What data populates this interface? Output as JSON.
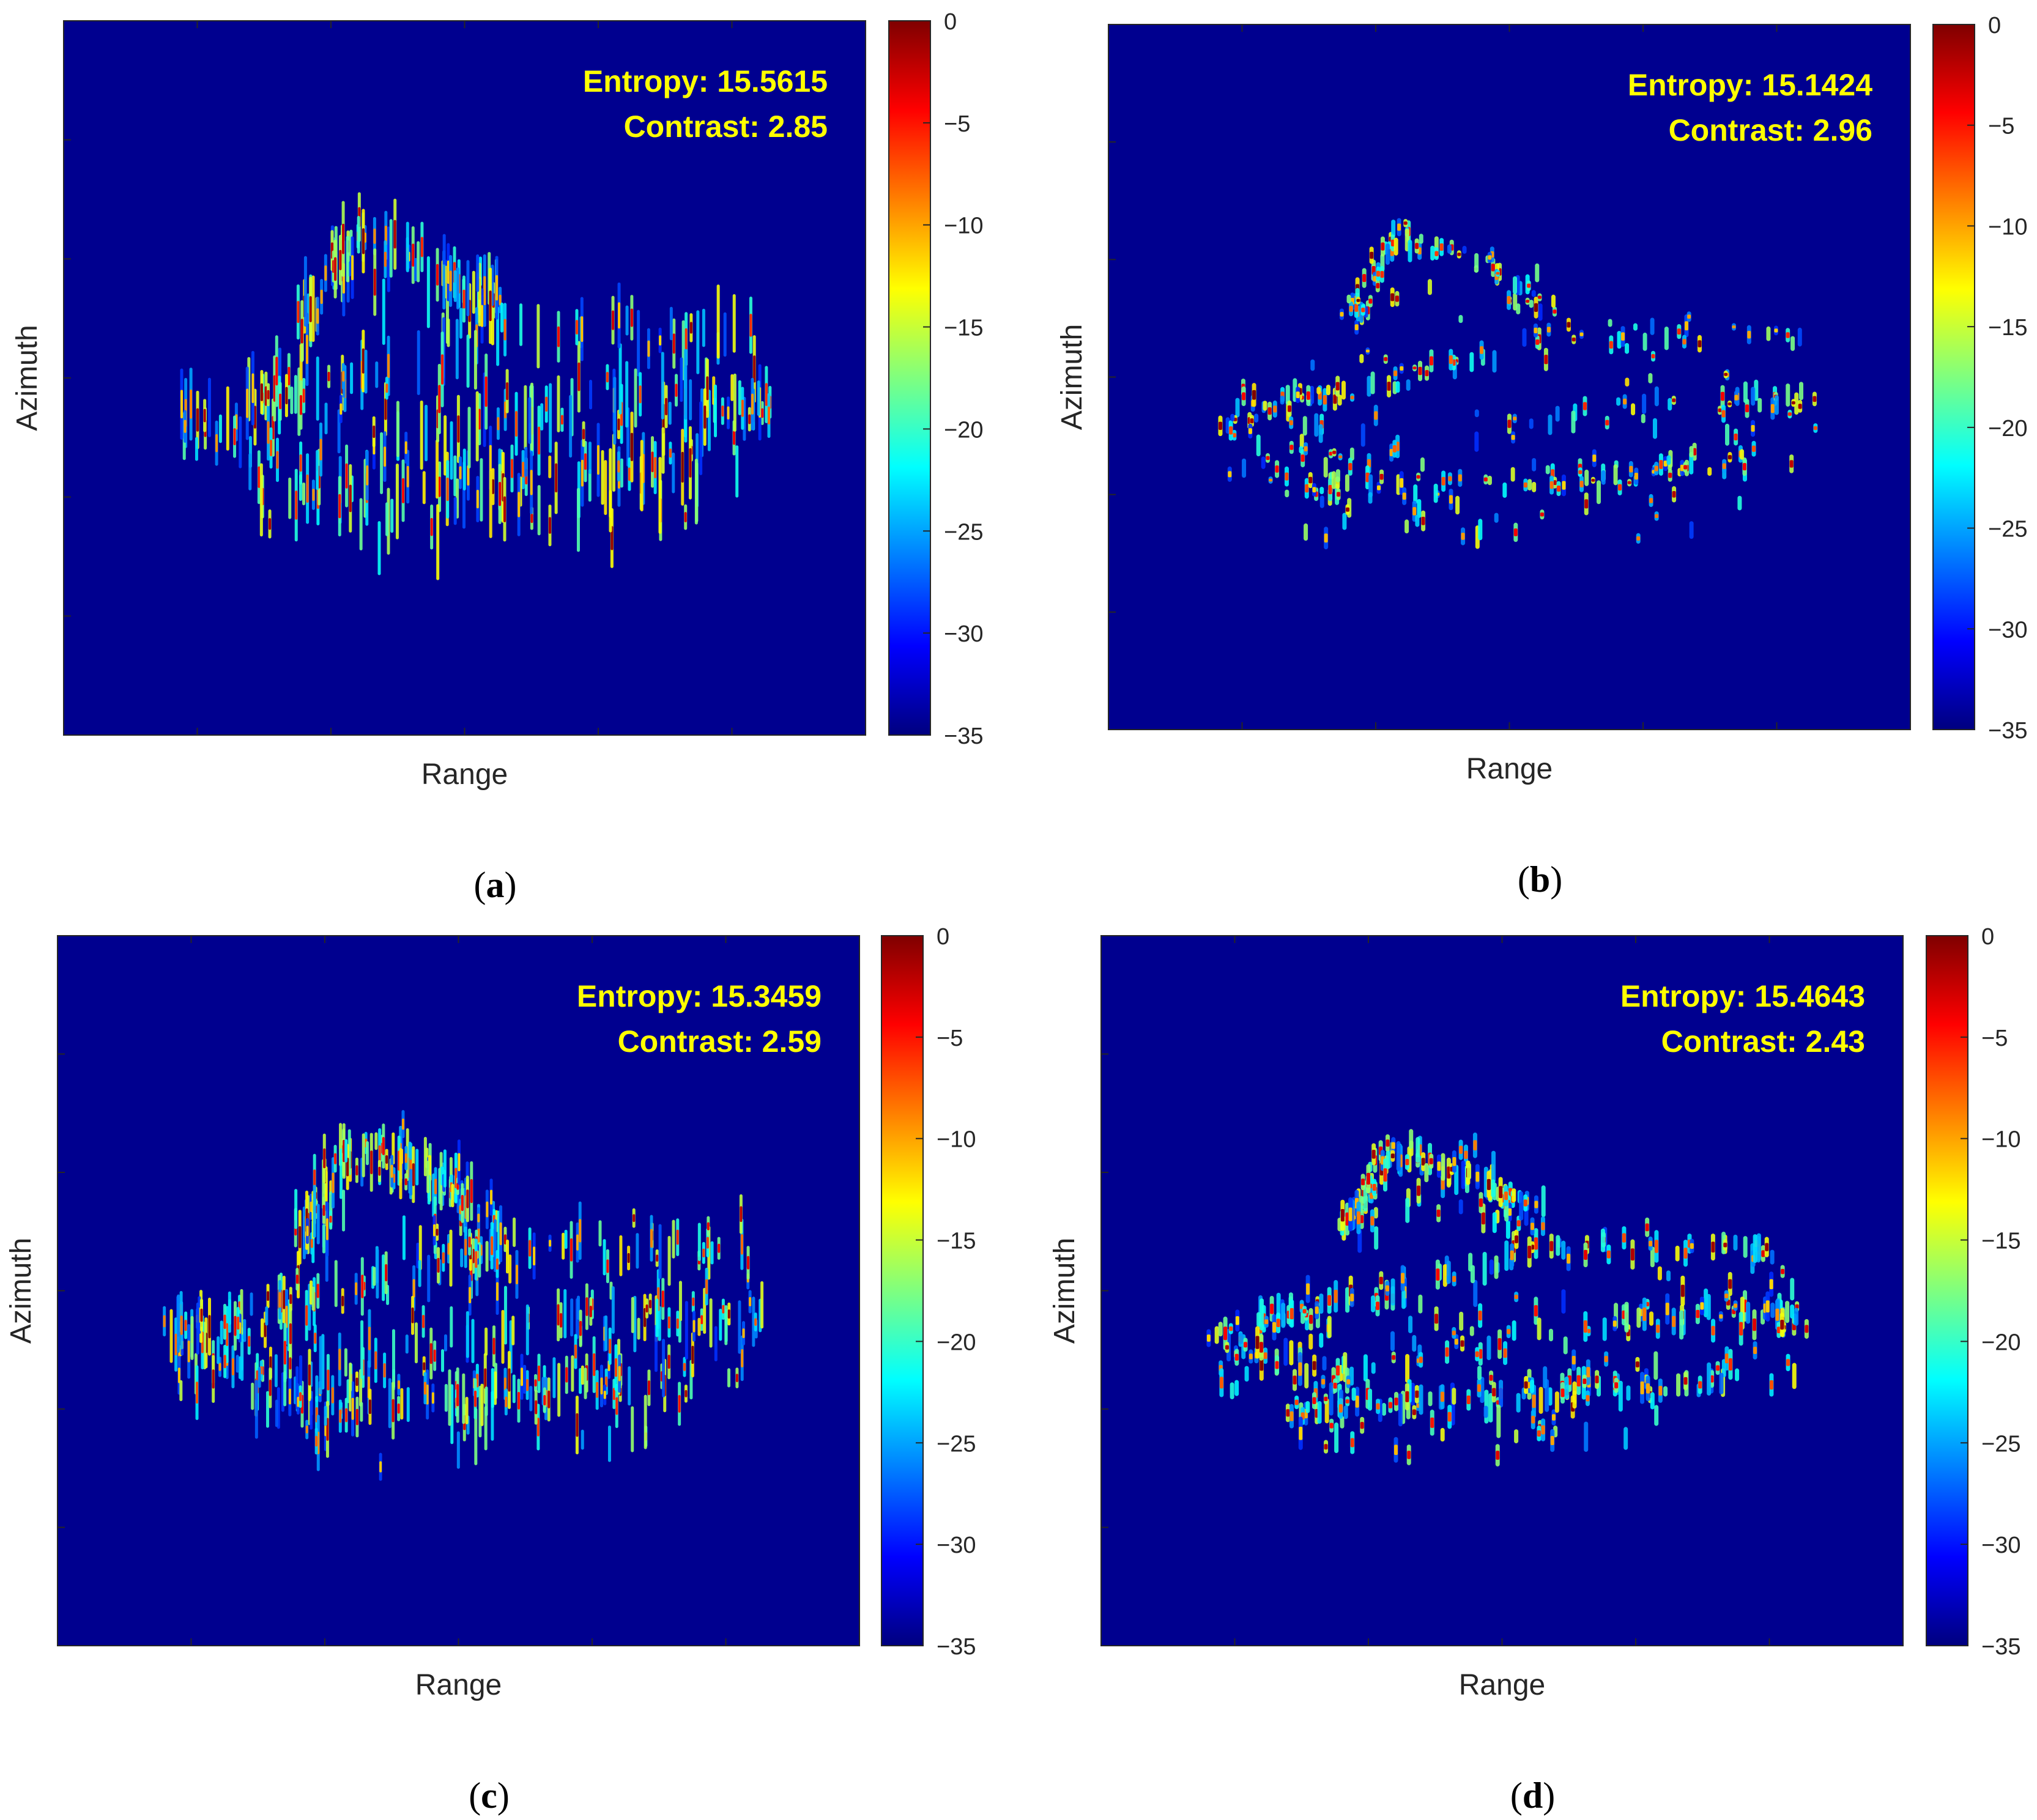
{
  "colors": {
    "background": "#00008f",
    "annotation": "#ffff00",
    "colormap": [
      "#00007f",
      "#0000ff",
      "#007fff",
      "#00ffff",
      "#7fff7f",
      "#ffff00",
      "#ff7f00",
      "#ff0000",
      "#7f0000"
    ]
  },
  "chart_data": [
    {
      "panel": "a",
      "type": "heatmap",
      "caption": "a",
      "xlabel": "Range",
      "ylabel": "Azimuth",
      "colorbar": {
        "ticks": [
          "0",
          "−5",
          "−10",
          "−15",
          "−20",
          "−25",
          "−30",
          "−35"
        ],
        "range": [
          -35,
          0
        ]
      },
      "annotations": {
        "entropy": "Entropy: 15.5615",
        "contrast": "Contrast: 2.85"
      },
      "style": "vertical streaks"
    },
    {
      "panel": "b",
      "type": "heatmap",
      "caption": "b",
      "xlabel": "Range",
      "ylabel": "Azimuth",
      "colorbar": {
        "ticks": [
          "0",
          "−5",
          "−10",
          "−15",
          "−20",
          "−25",
          "−30",
          "−35"
        ],
        "range": [
          -35,
          0
        ]
      },
      "annotations": {
        "entropy": "Entropy: 15.1424",
        "contrast": "Contrast: 2.96"
      },
      "style": "focused points"
    },
    {
      "panel": "c",
      "type": "heatmap",
      "caption": "c",
      "xlabel": "Range",
      "ylabel": "Azimuth",
      "colorbar": {
        "ticks": [
          "0",
          "−5",
          "−10",
          "−15",
          "−20",
          "−25",
          "−30",
          "−35"
        ],
        "range": [
          -35,
          0
        ]
      },
      "annotations": {
        "entropy": "Entropy: 15.3459",
        "contrast": "Contrast: 2.59"
      },
      "style": "dense streaks"
    },
    {
      "panel": "d",
      "type": "heatmap",
      "caption": "d",
      "xlabel": "Range",
      "ylabel": "Azimuth",
      "colorbar": {
        "ticks": [
          "0",
          "−5",
          "−10",
          "−15",
          "−20",
          "−25",
          "−30",
          "−35"
        ],
        "range": [
          -35,
          0
        ]
      },
      "annotations": {
        "entropy": "Entropy: 15.4643",
        "contrast": "Contrast: 2.43"
      },
      "style": "dense points"
    }
  ]
}
